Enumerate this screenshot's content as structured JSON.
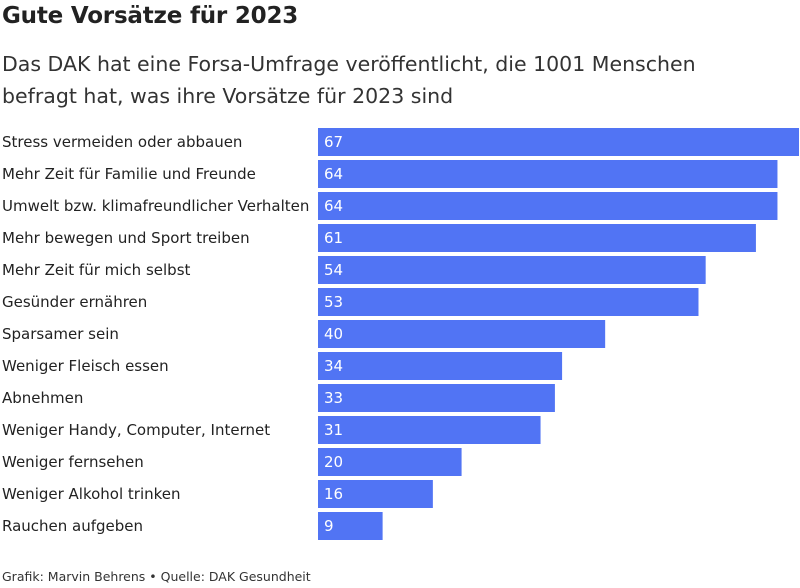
{
  "header": {
    "title": "Gute Vorsätze für 2023",
    "subtitle": "Das DAK hat eine Forsa-Umfrage veröffentlicht, die 1001 Menschen befragt hat, was ihre Vorsätze für 2023 sind"
  },
  "footer": {
    "credit": "Grafik: Marvin Behrens • Quelle: DAK Gesundheit"
  },
  "colors": {
    "bar": "#5174f4",
    "bar_label": "#ffffff",
    "category_label": "#222222"
  },
  "chart_data": {
    "type": "bar",
    "orientation": "horizontal",
    "categories": [
      "Stress vermeiden oder abbauen",
      "Mehr Zeit für Familie und Freunde",
      "Umwelt bzw. klimafreundlicher Verhalten",
      "Mehr bewegen und Sport treiben",
      "Mehr Zeit für mich selbst",
      "Gesünder ernähren",
      "Sparsamer sein",
      "Weniger Fleisch essen",
      "Abnehmen",
      "Weniger Handy, Computer, Internet",
      "Weniger fernsehen",
      "Weniger Alkohol trinken",
      "Rauchen aufgeben"
    ],
    "values": [
      67,
      64,
      64,
      61,
      54,
      53,
      40,
      34,
      33,
      31,
      20,
      16,
      9
    ],
    "xlim": [
      0,
      67
    ],
    "grid": false,
    "data_labels": true
  }
}
